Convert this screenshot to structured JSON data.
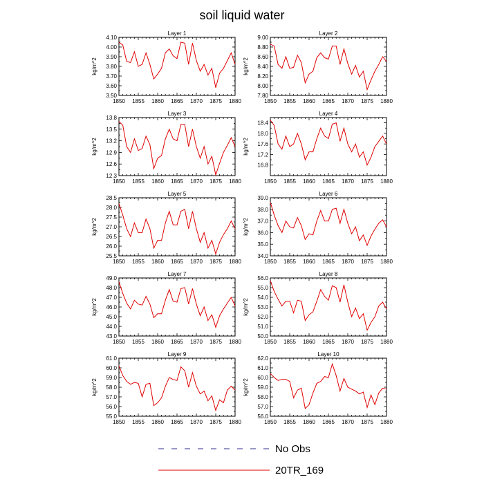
{
  "title": "soil liquid water",
  "legend": [
    {
      "label": "No Obs",
      "color": "#2f2f8f",
      "dash": true
    },
    {
      "label": "20TR_169",
      "color": "#e00000",
      "dash": false
    }
  ],
  "chart_data": [
    {
      "type": "line",
      "title": "Layer 1",
      "ylabel": "kg/m^2",
      "xlim": [
        1850,
        1880
      ],
      "ylim": [
        3.5,
        4.1
      ],
      "xticks": [
        1850,
        1855,
        1860,
        1865,
        1870,
        1875,
        1880
      ],
      "yticks": [
        "3.50",
        "3.60",
        "3.70",
        "3.80",
        "3.90",
        "4.00",
        "4.10"
      ],
      "series": [
        {
          "color": "#e00000",
          "x": [
            1850,
            1851,
            1852,
            1853,
            1854,
            1855,
            1856,
            1857,
            1858,
            1859,
            1860,
            1861,
            1862,
            1863,
            1864,
            1865,
            1866,
            1867,
            1868,
            1869,
            1870,
            1871,
            1872,
            1873,
            1874,
            1875,
            1876,
            1877,
            1878,
            1879,
            1880
          ],
          "y": [
            4.05,
            4.02,
            3.85,
            3.84,
            3.95,
            3.8,
            3.82,
            3.94,
            3.82,
            3.67,
            3.72,
            3.78,
            3.94,
            3.98,
            3.91,
            3.88,
            4.05,
            4.04,
            3.82,
            4.04,
            3.86,
            3.75,
            3.82,
            3.71,
            3.78,
            3.58,
            3.73,
            3.78,
            3.86,
            3.94,
            3.82
          ]
        }
      ]
    },
    {
      "type": "line",
      "title": "Layer 2",
      "ylabel": "kg/m^2",
      "xlim": [
        1850,
        1880
      ],
      "ylim": [
        7.8,
        9.0
      ],
      "xticks": [
        1850,
        1855,
        1860,
        1865,
        1870,
        1875,
        1880
      ],
      "yticks": [
        "7.80",
        "8.00",
        "8.20",
        "8.40",
        "8.60",
        "8.80",
        "9.00"
      ],
      "series": [
        {
          "color": "#e00000",
          "x": [
            1850,
            1851,
            1852,
            1853,
            1854,
            1855,
            1856,
            1857,
            1858,
            1859,
            1860,
            1861,
            1862,
            1863,
            1864,
            1865,
            1866,
            1867,
            1868,
            1869,
            1870,
            1871,
            1872,
            1873,
            1874,
            1875,
            1876,
            1877,
            1878,
            1879,
            1880
          ],
          "y": [
            8.86,
            8.82,
            8.44,
            8.36,
            8.6,
            8.36,
            8.38,
            8.63,
            8.48,
            8.06,
            8.24,
            8.3,
            8.58,
            8.68,
            8.58,
            8.55,
            8.82,
            8.82,
            8.44,
            8.76,
            8.46,
            8.24,
            8.42,
            8.18,
            8.3,
            7.92,
            8.12,
            8.3,
            8.44,
            8.6,
            8.5
          ]
        }
      ]
    },
    {
      "type": "line",
      "title": "Layer 3",
      "ylabel": "kg/m^2",
      "xlim": [
        1850,
        1880
      ],
      "ylim": [
        12.3,
        13.8
      ],
      "xticks": [
        1850,
        1855,
        1860,
        1865,
        1870,
        1875,
        1880
      ],
      "yticks": [
        "12.3",
        "12.6",
        "12.9",
        "13.2",
        "13.5",
        "13.8"
      ],
      "series": [
        {
          "color": "#e00000",
          "x": [
            1850,
            1851,
            1852,
            1853,
            1854,
            1855,
            1856,
            1857,
            1858,
            1859,
            1860,
            1861,
            1862,
            1863,
            1864,
            1865,
            1866,
            1867,
            1868,
            1869,
            1870,
            1871,
            1872,
            1873,
            1874,
            1875,
            1876,
            1877,
            1878,
            1879,
            1880
          ],
          "y": [
            13.7,
            13.6,
            13.05,
            12.9,
            13.25,
            12.95,
            13.0,
            13.32,
            13.1,
            12.48,
            12.75,
            12.82,
            13.25,
            13.5,
            13.25,
            13.2,
            13.62,
            13.62,
            13.05,
            13.5,
            13.05,
            12.75,
            13.05,
            12.6,
            12.8,
            12.32,
            12.62,
            12.9,
            13.08,
            13.28,
            13.05
          ]
        }
      ]
    },
    {
      "type": "line",
      "title": "Layer 4",
      "ylabel": "kg/m^2",
      "xlim": [
        1850,
        1880
      ],
      "ylim": [
        16.4,
        18.6
      ],
      "xticks": [
        1850,
        1855,
        1860,
        1865,
        1870,
        1875,
        1880
      ],
      "yticks": [
        "16.8",
        "17.2",
        "17.6",
        "18.0",
        "18.4"
      ],
      "series": [
        {
          "color": "#e00000",
          "x": [
            1850,
            1851,
            1852,
            1853,
            1854,
            1855,
            1856,
            1857,
            1858,
            1859,
            1860,
            1861,
            1862,
            1863,
            1864,
            1865,
            1866,
            1867,
            1868,
            1869,
            1870,
            1871,
            1872,
            1873,
            1874,
            1875,
            1876,
            1877,
            1878,
            1879,
            1880
          ],
          "y": [
            18.5,
            18.3,
            17.6,
            17.4,
            17.9,
            17.5,
            17.6,
            18.0,
            17.6,
            17.0,
            17.3,
            17.3,
            17.8,
            18.2,
            17.9,
            17.8,
            18.35,
            18.4,
            17.7,
            18.2,
            17.6,
            17.3,
            17.6,
            17.1,
            17.3,
            16.8,
            17.1,
            17.5,
            17.7,
            17.9,
            17.6
          ]
        }
      ]
    },
    {
      "type": "line",
      "title": "Layer 5",
      "ylabel": "kg/m^2",
      "xlim": [
        1850,
        1880
      ],
      "ylim": [
        25.5,
        28.5
      ],
      "xticks": [
        1850,
        1855,
        1860,
        1865,
        1870,
        1875,
        1880
      ],
      "yticks": [
        "25.5",
        "26.0",
        "26.5",
        "27.0",
        "27.5",
        "28.0",
        "28.5"
      ],
      "series": [
        {
          "color": "#e00000",
          "x": [
            1850,
            1851,
            1852,
            1853,
            1854,
            1855,
            1856,
            1857,
            1858,
            1859,
            1860,
            1861,
            1862,
            1863,
            1864,
            1865,
            1866,
            1867,
            1868,
            1869,
            1870,
            1871,
            1872,
            1873,
            1874,
            1875,
            1876,
            1877,
            1878,
            1879,
            1880
          ],
          "y": [
            28.2,
            27.6,
            26.9,
            26.5,
            27.2,
            26.7,
            26.7,
            27.4,
            26.9,
            25.9,
            26.3,
            26.3,
            27.2,
            27.8,
            27.1,
            27.1,
            27.8,
            27.9,
            26.9,
            27.8,
            26.9,
            26.2,
            26.7,
            25.9,
            26.3,
            25.6,
            26.2,
            26.6,
            26.9,
            27.3,
            26.9
          ]
        }
      ]
    },
    {
      "type": "line",
      "title": "Layer 6",
      "ylabel": "kg/m^2",
      "xlim": [
        1850,
        1880
      ],
      "ylim": [
        34.0,
        39.0
      ],
      "xticks": [
        1850,
        1855,
        1860,
        1865,
        1870,
        1875,
        1880
      ],
      "yticks": [
        "34.0",
        "35.0",
        "36.0",
        "37.0",
        "38.0",
        "39.0"
      ],
      "series": [
        {
          "color": "#e00000",
          "x": [
            1850,
            1851,
            1852,
            1853,
            1854,
            1855,
            1856,
            1857,
            1858,
            1859,
            1860,
            1861,
            1862,
            1863,
            1864,
            1865,
            1866,
            1867,
            1868,
            1869,
            1870,
            1871,
            1872,
            1873,
            1874,
            1875,
            1876,
            1877,
            1878,
            1879,
            1880
          ],
          "y": [
            38.6,
            37.5,
            36.6,
            36.0,
            37.0,
            36.5,
            36.4,
            37.3,
            36.6,
            35.4,
            35.9,
            35.8,
            37.0,
            37.9,
            37.0,
            37.0,
            38.0,
            38.1,
            36.8,
            38.0,
            36.8,
            35.9,
            36.5,
            35.3,
            35.8,
            34.9,
            35.7,
            36.3,
            36.8,
            37.1,
            36.5
          ]
        }
      ]
    },
    {
      "type": "line",
      "title": "Layer 7",
      "ylabel": "kg/m^2",
      "xlim": [
        1850,
        1880
      ],
      "ylim": [
        43.0,
        49.0
      ],
      "xticks": [
        1850,
        1855,
        1860,
        1865,
        1870,
        1875,
        1880
      ],
      "yticks": [
        "43.0",
        "44.0",
        "45.0",
        "46.0",
        "47.0",
        "48.0",
        "49.0"
      ],
      "series": [
        {
          "color": "#e00000",
          "x": [
            1850,
            1851,
            1852,
            1853,
            1854,
            1855,
            1856,
            1857,
            1858,
            1859,
            1860,
            1861,
            1862,
            1863,
            1864,
            1865,
            1866,
            1867,
            1868,
            1869,
            1870,
            1871,
            1872,
            1873,
            1874,
            1875,
            1876,
            1877,
            1878,
            1879,
            1880
          ],
          "y": [
            48.6,
            47.4,
            46.4,
            45.8,
            46.7,
            46.3,
            46.2,
            47.1,
            46.3,
            44.9,
            45.3,
            45.3,
            46.7,
            47.8,
            46.6,
            46.5,
            47.9,
            48.0,
            46.3,
            47.9,
            46.3,
            45.1,
            46.0,
            44.6,
            45.2,
            43.9,
            45.1,
            45.8,
            46.4,
            47.0,
            46.1
          ]
        }
      ]
    },
    {
      "type": "line",
      "title": "Layer 8",
      "ylabel": "kg/m^2",
      "xlim": [
        1850,
        1880
      ],
      "ylim": [
        50.0,
        56.0
      ],
      "xticks": [
        1850,
        1855,
        1860,
        1865,
        1870,
        1875,
        1880
      ],
      "yticks": [
        "50.0",
        "51.0",
        "52.0",
        "53.0",
        "54.0",
        "55.0",
        "56.0"
      ],
      "series": [
        {
          "color": "#e00000",
          "x": [
            1850,
            1851,
            1852,
            1853,
            1854,
            1855,
            1856,
            1857,
            1858,
            1859,
            1860,
            1861,
            1862,
            1863,
            1864,
            1865,
            1866,
            1867,
            1868,
            1869,
            1870,
            1871,
            1872,
            1873,
            1874,
            1875,
            1876,
            1877,
            1878,
            1879,
            1880
          ],
          "y": [
            55.7,
            54.6,
            53.8,
            53.1,
            53.6,
            53.6,
            52.4,
            53.7,
            53.6,
            51.6,
            52.2,
            52.5,
            53.6,
            54.8,
            54.1,
            53.7,
            55.2,
            55.0,
            53.5,
            55.3,
            53.5,
            52.0,
            52.9,
            51.8,
            52.3,
            50.6,
            51.4,
            52.0,
            53.1,
            53.5,
            52.8
          ]
        }
      ]
    },
    {
      "type": "line",
      "title": "Layer 9",
      "ylabel": "kg/m^2",
      "xlim": [
        1850,
        1880
      ],
      "ylim": [
        55.0,
        61.0
      ],
      "xticks": [
        1850,
        1855,
        1860,
        1865,
        1870,
        1875,
        1880
      ],
      "yticks": [
        "55.0",
        "56.0",
        "57.0",
        "58.0",
        "59.0",
        "60.0",
        "61.0"
      ],
      "series": [
        {
          "color": "#e00000",
          "x": [
            1850,
            1851,
            1852,
            1853,
            1854,
            1855,
            1856,
            1857,
            1858,
            1859,
            1860,
            1861,
            1862,
            1863,
            1864,
            1865,
            1866,
            1867,
            1868,
            1869,
            1870,
            1871,
            1872,
            1873,
            1874,
            1875,
            1876,
            1877,
            1878,
            1879,
            1880
          ],
          "y": [
            60.2,
            59.2,
            58.6,
            58.3,
            58.5,
            58.4,
            57.0,
            58.3,
            58.4,
            56.1,
            56.4,
            56.9,
            58.1,
            59.0,
            58.8,
            58.7,
            60.1,
            59.7,
            58.0,
            59.5,
            58.1,
            57.3,
            57.6,
            56.6,
            57.1,
            55.6,
            56.7,
            56.4,
            57.7,
            58.1,
            57.7
          ]
        }
      ]
    },
    {
      "type": "line",
      "title": "Layer 10",
      "ylabel": "kg/m^2",
      "xlim": [
        1850,
        1880
      ],
      "ylim": [
        56.0,
        62.0
      ],
      "xticks": [
        1850,
        1855,
        1860,
        1865,
        1870,
        1875,
        1880
      ],
      "yticks": [
        "56.0",
        "57.0",
        "58.0",
        "59.0",
        "60.0",
        "61.0",
        "62.0"
      ],
      "series": [
        {
          "color": "#e00000",
          "x": [
            1850,
            1851,
            1852,
            1853,
            1854,
            1855,
            1856,
            1857,
            1858,
            1859,
            1860,
            1861,
            1862,
            1863,
            1864,
            1865,
            1866,
            1867,
            1868,
            1869,
            1870,
            1871,
            1872,
            1873,
            1874,
            1875,
            1876,
            1877,
            1878,
            1879,
            1880
          ],
          "y": [
            60.4,
            60.0,
            59.7,
            59.8,
            59.8,
            59.6,
            57.9,
            58.7,
            58.9,
            56.8,
            57.2,
            58.4,
            59.4,
            59.6,
            60.1,
            60.0,
            61.4,
            60.2,
            58.6,
            59.9,
            59.0,
            58.8,
            58.6,
            58.3,
            58.5,
            56.9,
            58.2,
            57.2,
            58.4,
            58.9,
            58.8
          ]
        }
      ]
    }
  ]
}
